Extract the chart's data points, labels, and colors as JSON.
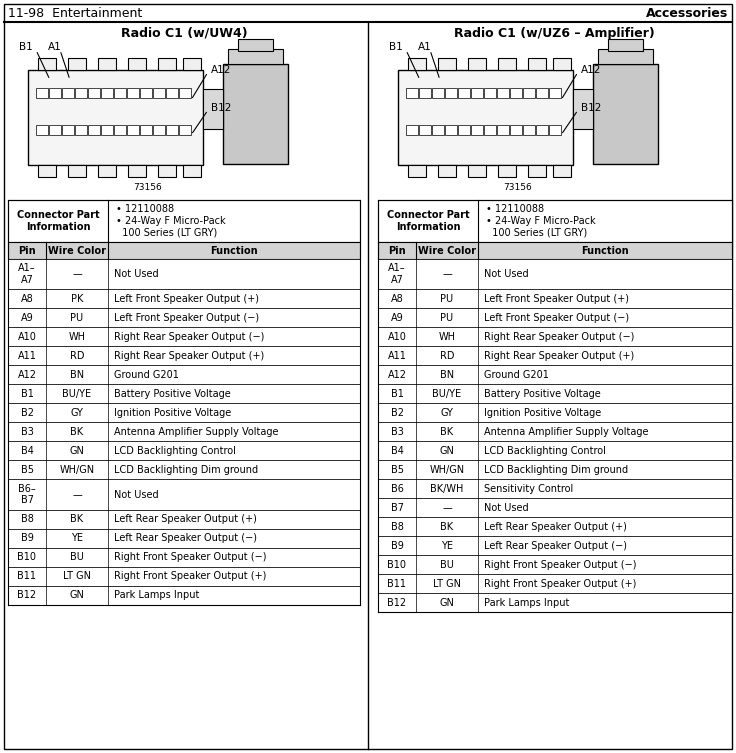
{
  "page_header_left": "11-98  Entertainment",
  "page_header_right": "Accessories",
  "left_title": "Radio C1 (w/UW4)",
  "right_title": "Radio C1 (w/UZ6 – Amplifier)",
  "connector_part_label": "Connector Part\nInformation",
  "connector_bullets": "• 12110088\n• 24-Way F Micro-Pack\n  100 Series (LT GRY)",
  "col_headers": [
    "Pin",
    "Wire Color",
    "Function"
  ],
  "left_rows": [
    [
      "A1–\nA7",
      "—",
      "Not Used"
    ],
    [
      "A8",
      "PK",
      "Left Front Speaker Output (+)"
    ],
    [
      "A9",
      "PU",
      "Left Front Speaker Output (−)"
    ],
    [
      "A10",
      "WH",
      "Right Rear Speaker Output (−)"
    ],
    [
      "A11",
      "RD",
      "Right Rear Speaker Output (+)"
    ],
    [
      "A12",
      "BN",
      "Ground G201"
    ],
    [
      "B1",
      "BU/YE",
      "Battery Positive Voltage"
    ],
    [
      "B2",
      "GY",
      "Ignition Positive Voltage"
    ],
    [
      "B3",
      "BK",
      "Antenna Amplifier Supply Voltage"
    ],
    [
      "B4",
      "GN",
      "LCD Backlighting Control"
    ],
    [
      "B5",
      "WH/GN",
      "LCD Backlighting Dim ground"
    ],
    [
      "B6–\nB7",
      "—",
      "Not Used"
    ],
    [
      "B8",
      "BK",
      "Left Rear Speaker Output (+)"
    ],
    [
      "B9",
      "YE",
      "Left Rear Speaker Output (−)"
    ],
    [
      "B10",
      "BU",
      "Right Front Speaker Output (−)"
    ],
    [
      "B11",
      "LT GN",
      "Right Front Speaker Output (+)"
    ],
    [
      "B12",
      "GN",
      "Park Lamps Input"
    ]
  ],
  "right_rows": [
    [
      "A1–\nA7",
      "—",
      "Not Used"
    ],
    [
      "A8",
      "PU",
      "Left Front Speaker Output (+)"
    ],
    [
      "A9",
      "PU",
      "Left Front Speaker Output (−)"
    ],
    [
      "A10",
      "WH",
      "Right Rear Speaker Output (−)"
    ],
    [
      "A11",
      "RD",
      "Right Rear Speaker Output (+)"
    ],
    [
      "A12",
      "BN",
      "Ground G201"
    ],
    [
      "B1",
      "BU/YE",
      "Battery Positive Voltage"
    ],
    [
      "B2",
      "GY",
      "Ignition Positive Voltage"
    ],
    [
      "B3",
      "BK",
      "Antenna Amplifier Supply Voltage"
    ],
    [
      "B4",
      "GN",
      "LCD Backlighting Control"
    ],
    [
      "B5",
      "WH/GN",
      "LCD Backlighting Dim ground"
    ],
    [
      "B6",
      "BK/WH",
      "Sensitivity Control"
    ],
    [
      "B7",
      "—",
      "Not Used"
    ],
    [
      "B8",
      "BK",
      "Left Rear Speaker Output (+)"
    ],
    [
      "B9",
      "YE",
      "Left Rear Speaker Output (−)"
    ],
    [
      "B10",
      "BU",
      "Right Front Speaker Output (−)"
    ],
    [
      "B11",
      "LT GN",
      "Right Front Speaker Output (+)"
    ],
    [
      "B12",
      "GN",
      "Park Lamps Input"
    ]
  ],
  "bg_color": "#ffffff",
  "line_color": "#000000",
  "text_color": "#000000",
  "font_size": 7.0
}
